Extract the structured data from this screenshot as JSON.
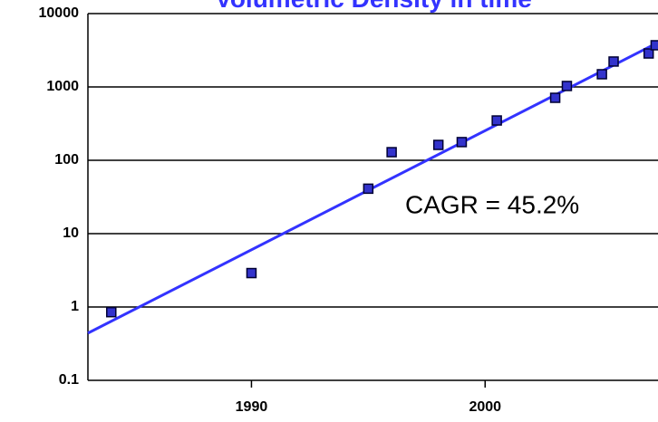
{
  "chart_data": {
    "type": "scatter",
    "title": "Volumetric Density in time",
    "annotation": "CAGR = 45.2%",
    "x": [
      1984,
      1990,
      1995,
      1996,
      1998,
      1999,
      2000.5,
      2003,
      2003.5,
      2005,
      2005.5,
      2007,
      2007.3
    ],
    "values": [
      0.85,
      2.9,
      41,
      129,
      162,
      177,
      349,
      711,
      1030,
      1490,
      2220,
      2860,
      3700
    ],
    "color": "#3333cc",
    "trend": {
      "x": [
        1983,
        2007.4
      ],
      "values": [
        0.44,
        4030
      ],
      "color": "#3333ff"
    },
    "xlim": [
      1983,
      2007.4
    ],
    "xticks": [
      1990,
      2000
    ],
    "ylim": [
      0.1,
      10000
    ],
    "yticks": [
      0.1,
      1,
      10,
      100,
      1000,
      10000
    ],
    "ylog": true,
    "grid": true
  }
}
